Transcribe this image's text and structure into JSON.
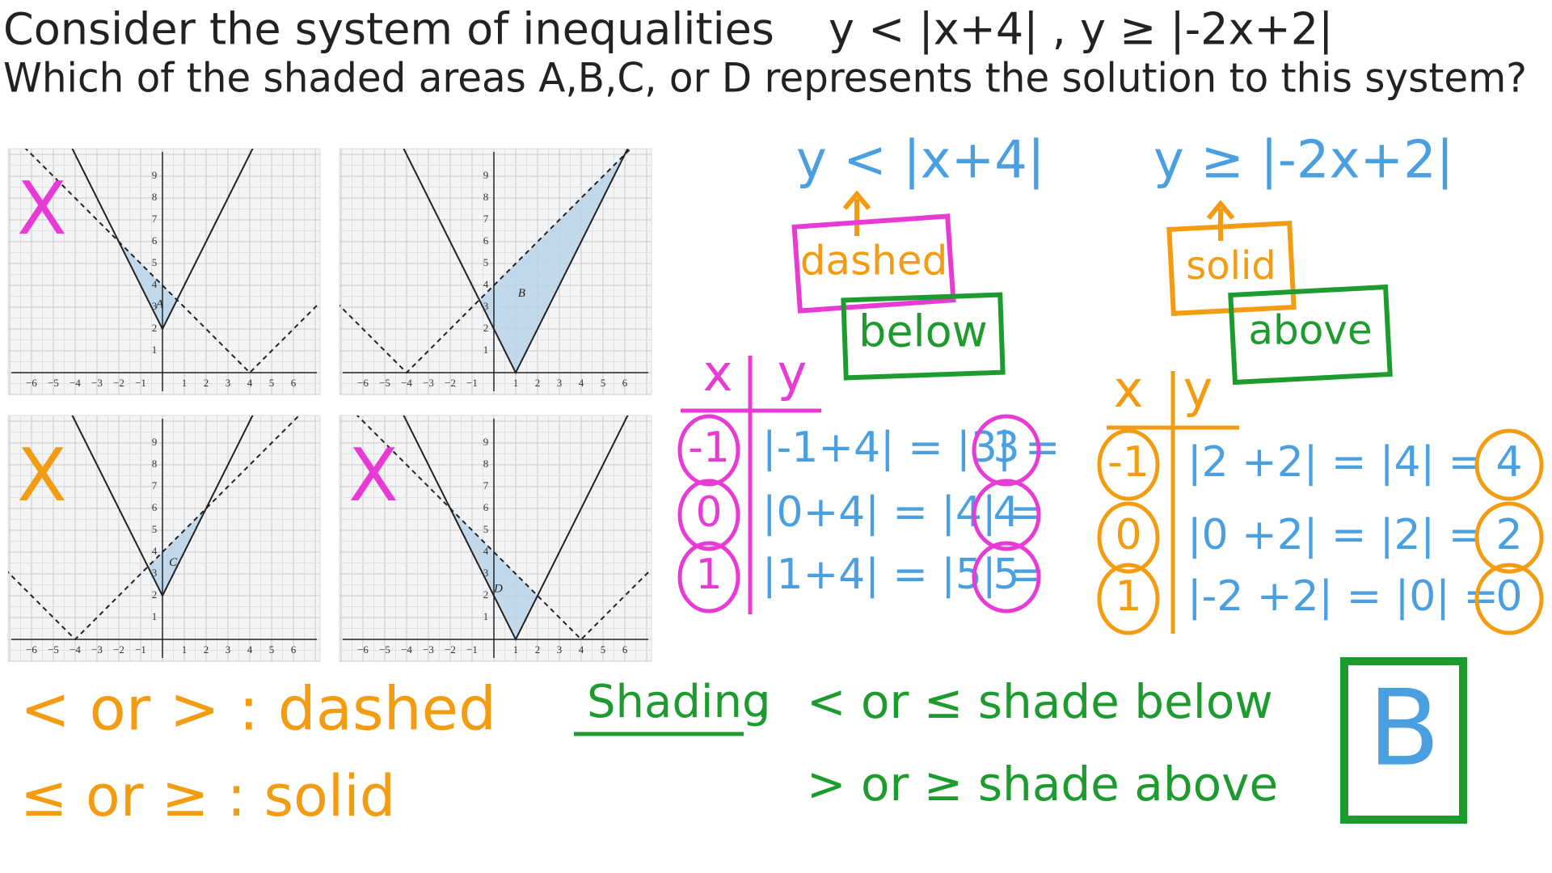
{
  "header": {
    "line1": "Consider the system of inequalities",
    "system": "y < |x+4| ,  y ≥ |-2x+2|",
    "line2": "Which of the shaded areas A,B,C, or D represents the solution to this system?"
  },
  "graph_axes": {
    "x_tick_labels": [
      "−6",
      "−5",
      "−4",
      "−3",
      "−2",
      "−1",
      "1",
      "2",
      "3",
      "4",
      "5",
      "6"
    ],
    "y_tick_labels": [
      "1",
      "2",
      "3",
      "4",
      "5",
      "6",
      "7",
      "8",
      "9"
    ]
  },
  "graphs": [
    {
      "label": "A",
      "mark": "X"
    },
    {
      "label": "B"
    },
    {
      "label": "C",
      "mark": "X"
    },
    {
      "label": "D",
      "mark": "X"
    }
  ],
  "inequality1": {
    "equation": "y < |x+4|",
    "line": "dashed",
    "shade": "below"
  },
  "inequality2": {
    "equation": "y ≥ |-2x+2|",
    "line": "solid",
    "shade": "above"
  },
  "table1": {
    "headers": [
      "x",
      "y"
    ],
    "rows": [
      [
        "-1",
        "|-1+4| = |3| =",
        "3"
      ],
      [
        "0",
        "|0+4| = |4| =",
        "4"
      ],
      [
        "1",
        "|1+4| = |5| =",
        "5"
      ]
    ]
  },
  "table2": {
    "headers": [
      "x",
      "y"
    ],
    "rows": [
      [
        "-1",
        "|2 +2| = |4| =",
        "4"
      ],
      [
        "0",
        "|0 +2| = |2| =",
        "2"
      ],
      [
        "1",
        "|-2 +2| = |0| =",
        "0"
      ]
    ]
  },
  "rules": {
    "dashed_rule": "< or > : dashed",
    "solid_rule": "≤ or ≥ : solid",
    "shading_title": "Shading",
    "shading_colon": ":",
    "below_rule": "< or ≤ shade below",
    "above_rule": "> or ≥ shade above"
  },
  "answer": "B"
}
